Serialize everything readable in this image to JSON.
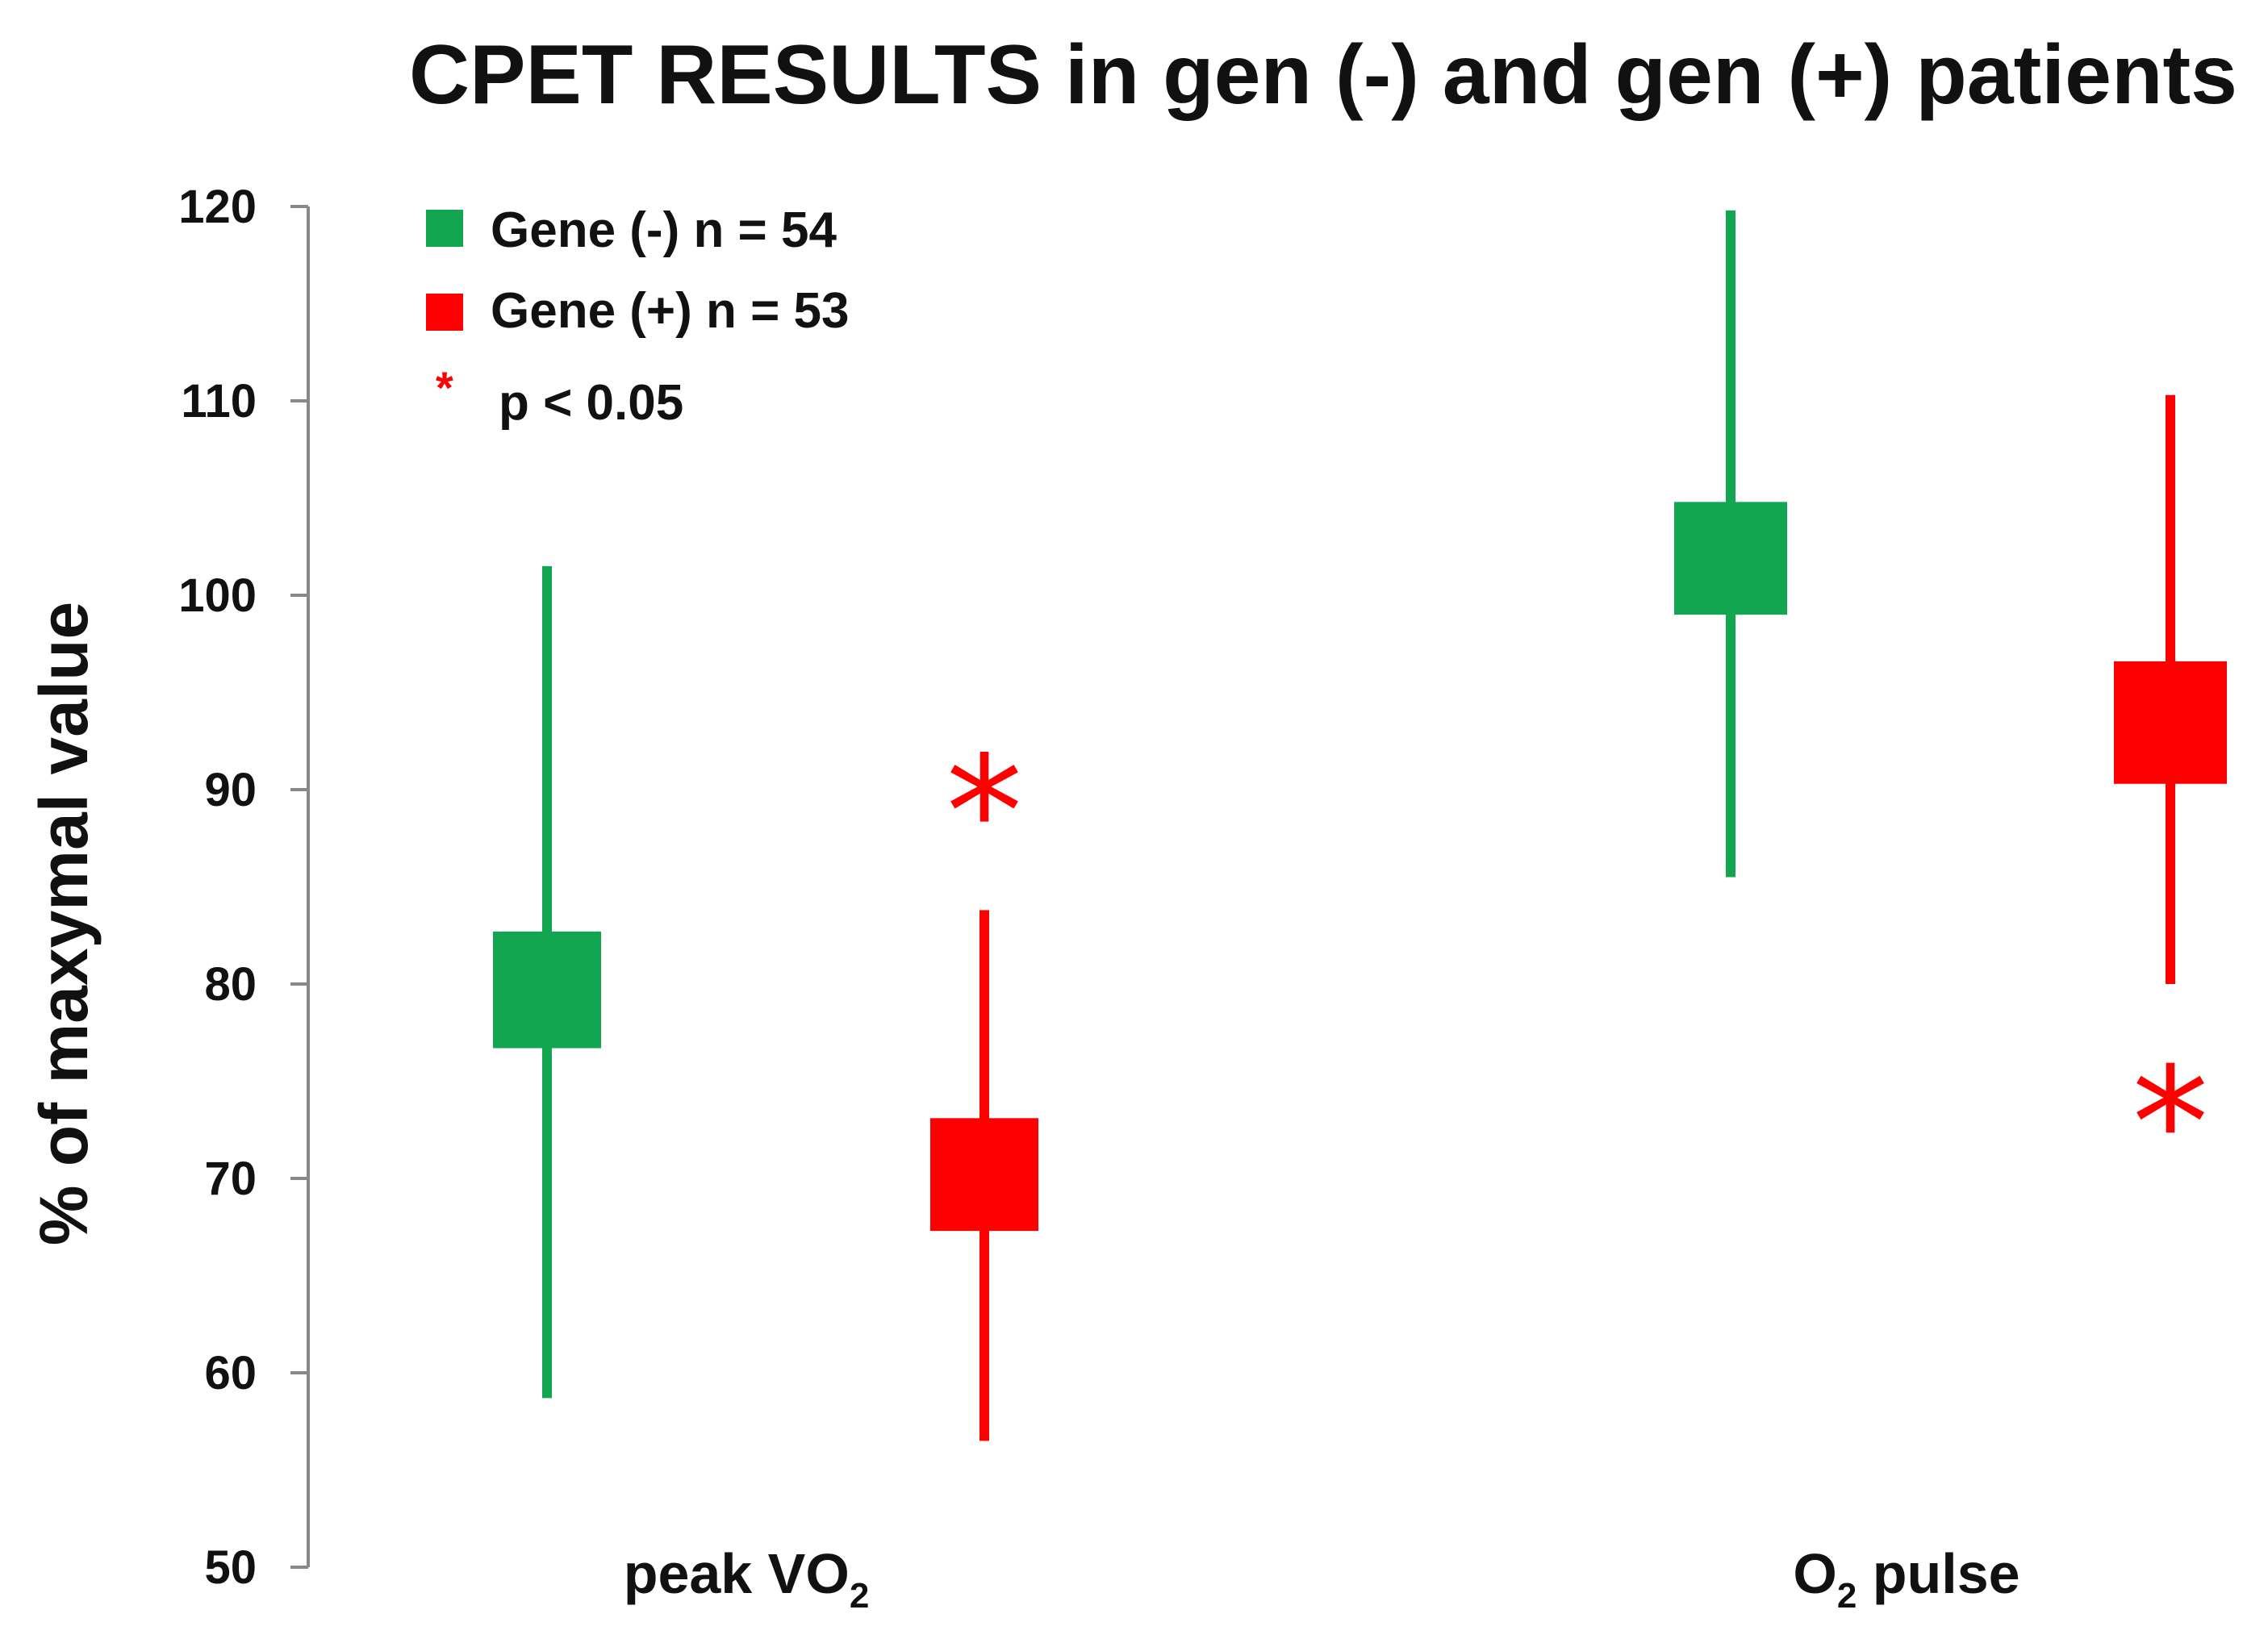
{
  "chart_data": {
    "type": "range",
    "title": "CPET RESULTS in gen (-) and gen (+) patients",
    "ylabel": "% of maxymal value",
    "xlabel": "",
    "ylim": [
      50,
      120
    ],
    "yticks": [
      50,
      60,
      70,
      80,
      90,
      100,
      110,
      120
    ],
    "categories": [
      {
        "base": "peak VO",
        "sub": "2",
        "suffix": "",
        "prefix": "",
        "label": "peak VO2"
      },
      {
        "base": "",
        "sub": "2",
        "suffix": " pulse",
        "prefix": "O",
        "label": "O2 pulse"
      }
    ],
    "series": [
      {
        "name": "Gene (-) n = 54",
        "color": "#12a651",
        "values": [
          {
            "min": 58.7,
            "box_low": 76.7,
            "box_high": 82.7,
            "max": 101.5
          },
          {
            "min": 85.5,
            "box_low": 99.0,
            "box_high": 104.8,
            "max": 119.8
          }
        ]
      },
      {
        "name": "Gene (+) n = 53",
        "color": "#ff0000",
        "values": [
          {
            "min": 56.5,
            "box_low": 67.3,
            "box_high": 73.1,
            "max": 83.8
          },
          {
            "min": 80.0,
            "box_low": 90.3,
            "box_high": 96.6,
            "max": 110.3
          }
        ]
      }
    ],
    "significance": {
      "symbol": "*",
      "label": "p < 0.05",
      "color": "#ff0000",
      "markers": [
        {
          "category": 0,
          "series": 1,
          "y": 89.5
        },
        {
          "category": 1,
          "series": 1,
          "y": 73.5
        }
      ]
    },
    "legend_position": "top-left",
    "grid": false
  }
}
